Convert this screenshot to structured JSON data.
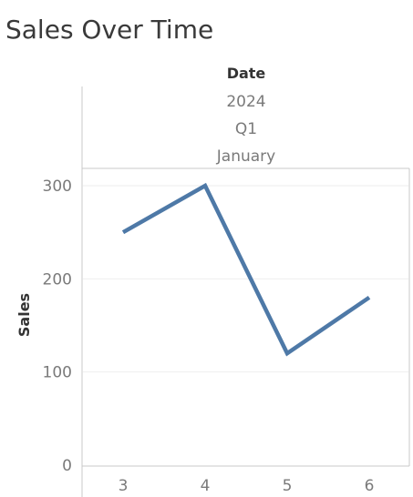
{
  "chart_data": {
    "type": "line",
    "title": "Sales Over Time",
    "column_header": {
      "field": "Date",
      "levels": [
        "2024",
        "Q1",
        "January"
      ]
    },
    "x": [
      3,
      4,
      5,
      6
    ],
    "x_tick_labels": [
      "3",
      "4",
      "5",
      "6"
    ],
    "series": [
      {
        "values": [
          250,
          300,
          120,
          180
        ]
      }
    ],
    "ylabel": "Sales",
    "y_ticks": [
      0,
      100,
      200,
      300
    ],
    "y_tick_labels": [
      "0",
      "100",
      "200",
      "300"
    ],
    "ylim": [
      0,
      318
    ],
    "grid": true,
    "legend": "none",
    "colors": {
      "line": "#4e79a7",
      "grid": "#eeeeee",
      "border": "#c8c8c8"
    }
  }
}
